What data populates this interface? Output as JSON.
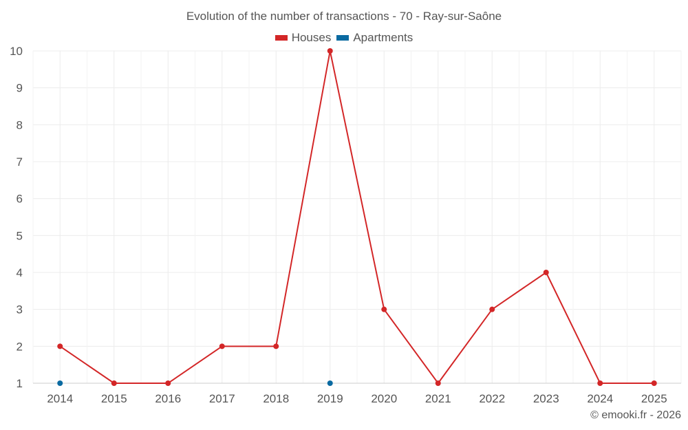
{
  "chart_data": {
    "type": "line",
    "title": "Evolution of the number of transactions - 70 - Ray-sur-Saône",
    "xlabel": "",
    "ylabel": "",
    "categories": [
      "2014",
      "2015",
      "2016",
      "2017",
      "2018",
      "2019",
      "2020",
      "2021",
      "2022",
      "2023",
      "2024",
      "2025"
    ],
    "ylim": [
      1,
      10
    ],
    "yticks": [
      "1",
      "2",
      "3",
      "4",
      "5",
      "6",
      "7",
      "8",
      "9",
      "10"
    ],
    "grid": true,
    "legend_position": "top-center",
    "series": [
      {
        "name": "Houses",
        "color": "#d32627",
        "values": [
          2,
          1,
          1,
          2,
          2,
          10,
          3,
          1,
          3,
          4,
          1,
          1
        ]
      },
      {
        "name": "Apartments",
        "color": "#0a6aa1",
        "values": [
          1,
          null,
          null,
          null,
          null,
          1,
          null,
          null,
          null,
          null,
          null,
          null
        ]
      }
    ]
  },
  "credit": "© emooki.fr - 2026"
}
